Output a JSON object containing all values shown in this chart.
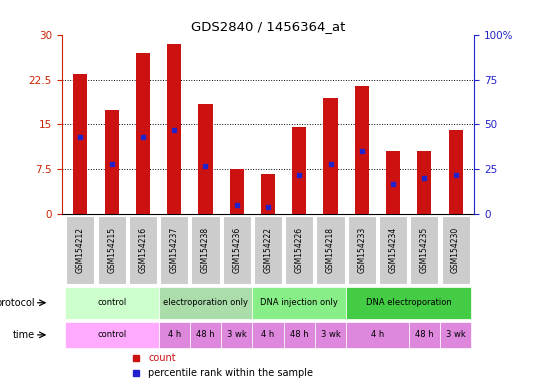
{
  "title": "GDS2840 / 1456364_at",
  "samples": [
    "GSM154212",
    "GSM154215",
    "GSM154216",
    "GSM154237",
    "GSM154238",
    "GSM154236",
    "GSM154222",
    "GSM154226",
    "GSM154218",
    "GSM154233",
    "GSM154234",
    "GSM154235",
    "GSM154230"
  ],
  "counts": [
    23.5,
    17.5,
    27.0,
    28.5,
    18.5,
    7.5,
    6.8,
    14.5,
    19.5,
    21.5,
    10.5,
    10.5,
    14.0
  ],
  "percentiles": [
    43,
    28,
    43,
    47,
    27,
    5,
    4,
    22,
    28,
    35,
    17,
    20,
    22
  ],
  "bar_color": "#cc1111",
  "percentile_color": "#2222cc",
  "ylim_left": [
    0,
    30
  ],
  "ylim_right": [
    0,
    100
  ],
  "yticks_left": [
    0,
    7.5,
    15,
    22.5,
    30
  ],
  "ytick_labels_left": [
    "0",
    "7.5",
    "15",
    "22.5",
    "30"
  ],
  "yticks_right": [
    0,
    25,
    50,
    75,
    100
  ],
  "ytick_labels_right": [
    "0",
    "25",
    "50",
    "75",
    "100%"
  ],
  "left_axis_color": "#cc2200",
  "right_axis_color": "#2222cc",
  "protocol_row": [
    {
      "label": "control",
      "start": 0,
      "end": 3,
      "color": "#ccffcc"
    },
    {
      "label": "electroporation only",
      "start": 3,
      "end": 6,
      "color": "#aaddaa"
    },
    {
      "label": "DNA injection only",
      "start": 6,
      "end": 9,
      "color": "#88ee88"
    },
    {
      "label": "DNA electroporation",
      "start": 9,
      "end": 13,
      "color": "#44cc44"
    }
  ],
  "time_row": [
    {
      "label": "control",
      "start": 0,
      "end": 3,
      "color": "#ffaaff"
    },
    {
      "label": "4 h",
      "start": 3,
      "end": 4,
      "color": "#dd88dd"
    },
    {
      "label": "48 h",
      "start": 4,
      "end": 5,
      "color": "#dd88dd"
    },
    {
      "label": "3 wk",
      "start": 5,
      "end": 6,
      "color": "#dd88dd"
    },
    {
      "label": "4 h",
      "start": 6,
      "end": 7,
      "color": "#dd88dd"
    },
    {
      "label": "48 h",
      "start": 7,
      "end": 8,
      "color": "#dd88dd"
    },
    {
      "label": "3 wk",
      "start": 8,
      "end": 9,
      "color": "#dd88dd"
    },
    {
      "label": "4 h",
      "start": 9,
      "end": 11,
      "color": "#dd88dd"
    },
    {
      "label": "48 h",
      "start": 11,
      "end": 12,
      "color": "#dd88dd"
    },
    {
      "label": "3 wk",
      "start": 12,
      "end": 13,
      "color": "#dd88dd"
    }
  ],
  "tick_bg_color": "#cccccc",
  "legend_count_color": "#cc1111",
  "legend_percentile_color": "#2222cc",
  "bar_width": 0.45
}
